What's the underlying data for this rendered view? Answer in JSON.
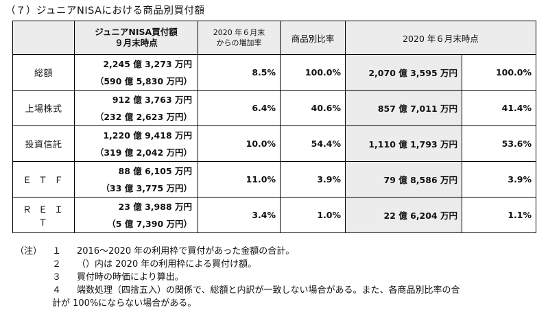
{
  "title": "（７）ジュニアNISAにおける商品別買付額",
  "table": {
    "headers": {
      "blank": "",
      "amount_line1": "ジュニアNISA買付額",
      "amount_line2": "９月末時点",
      "growth_line1": "2020 年６月末",
      "growth_line2": "からの増加率",
      "ratio": "商品別比率",
      "june": "2020 年６月末時点"
    },
    "rows": [
      {
        "label": "総額",
        "amount": "2,245 億 3,273 万円",
        "amount_sub": "（590 億 5,830 万円）",
        "growth": "8.5%",
        "ratio": "100.0%",
        "june_amount": "2,070 億 3,595 万円",
        "june_ratio": "100.0%"
      },
      {
        "label": "上場株式",
        "amount": "912 億 3,763 万円",
        "amount_sub": "（232 億 2,623 万円）",
        "growth": "6.4%",
        "ratio": "40.6%",
        "june_amount": "857 億 7,011 万円",
        "june_ratio": "41.4%"
      },
      {
        "label": "投資信託",
        "amount": "1,220 億 9,418 万円",
        "amount_sub": "（319 億 2,042 万円）",
        "growth": "10.0%",
        "ratio": "54.4%",
        "june_amount": "1,110 億 1,793 万円",
        "june_ratio": "53.6%"
      },
      {
        "label": "ＥＴＦ",
        "amount": "88 億 6,105 万円",
        "amount_sub": "（33 億 3,775 万円）",
        "growth": "11.0%",
        "ratio": "3.9%",
        "june_amount": "79 億 8,586 万円",
        "june_ratio": "3.9%"
      },
      {
        "label": "ＲＥＩＴ",
        "amount": "23 億 3,988 万円",
        "amount_sub": "（5 億 7,390 万円）",
        "growth": "3.4%",
        "ratio": "1.0%",
        "june_amount": "22 億 6,204 万円",
        "june_ratio": "1.1%"
      }
    ]
  },
  "notes": {
    "mark": "（注）",
    "items": [
      {
        "num": "１",
        "text": "2016～2020 年の利用枠で買付があった金額の合計。"
      },
      {
        "num": "２",
        "text": "（）内は 2020 年の利用枠による買付け額。"
      },
      {
        "num": "３",
        "text": "買付時の時価により算出。"
      },
      {
        "num": "４",
        "text": "端数処理（四捨五入）の関係で、総額と内訳が一致しない場合がある。また、各商品別比率の合"
      }
    ],
    "continuation": "計が 100%にならない場合がある。"
  }
}
